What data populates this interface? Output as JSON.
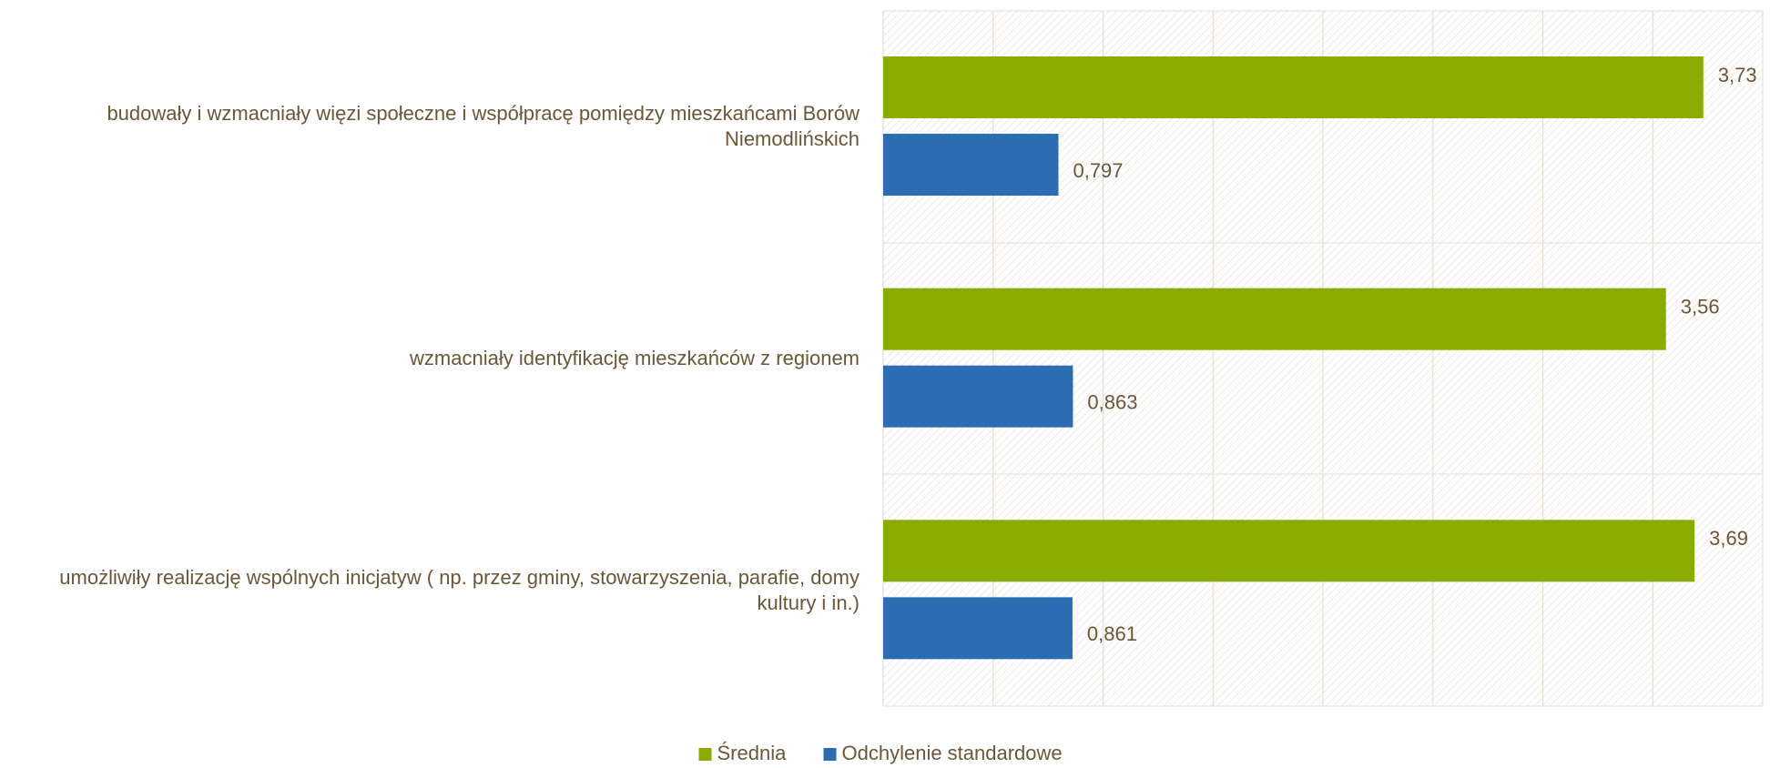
{
  "chart_data": {
    "type": "barh",
    "categories": [
      "budowały i wzmacniały więzi społeczne i współpracę pomiędzy mieszkańcami Borów Niemodlińskich",
      "wzmacniały identyfikację mieszkańców z regionem",
      "umożliwiły realizację wspólnych inicjatyw ( np. przez gminy, stowarzyszenia, parafie, domy kultury i in.)"
    ],
    "series": [
      {
        "name": "Średnia",
        "color": "#8aac00",
        "values": [
          3.73,
          3.56,
          3.69
        ],
        "value_labels": [
          "3,73",
          "3,56",
          "3,69"
        ]
      },
      {
        "name": "Odchylenie standardowe",
        "color": "#2b6cb3",
        "values": [
          0.797,
          0.863,
          0.861
        ],
        "value_labels": [
          "0,797",
          "0,863",
          "0,861"
        ]
      }
    ],
    "xlim": [
      0,
      4
    ],
    "xticks": [
      0,
      0.5,
      1,
      1.5,
      2,
      2.5,
      3,
      3.5,
      4
    ],
    "grid": true,
    "legend": "bottom"
  }
}
